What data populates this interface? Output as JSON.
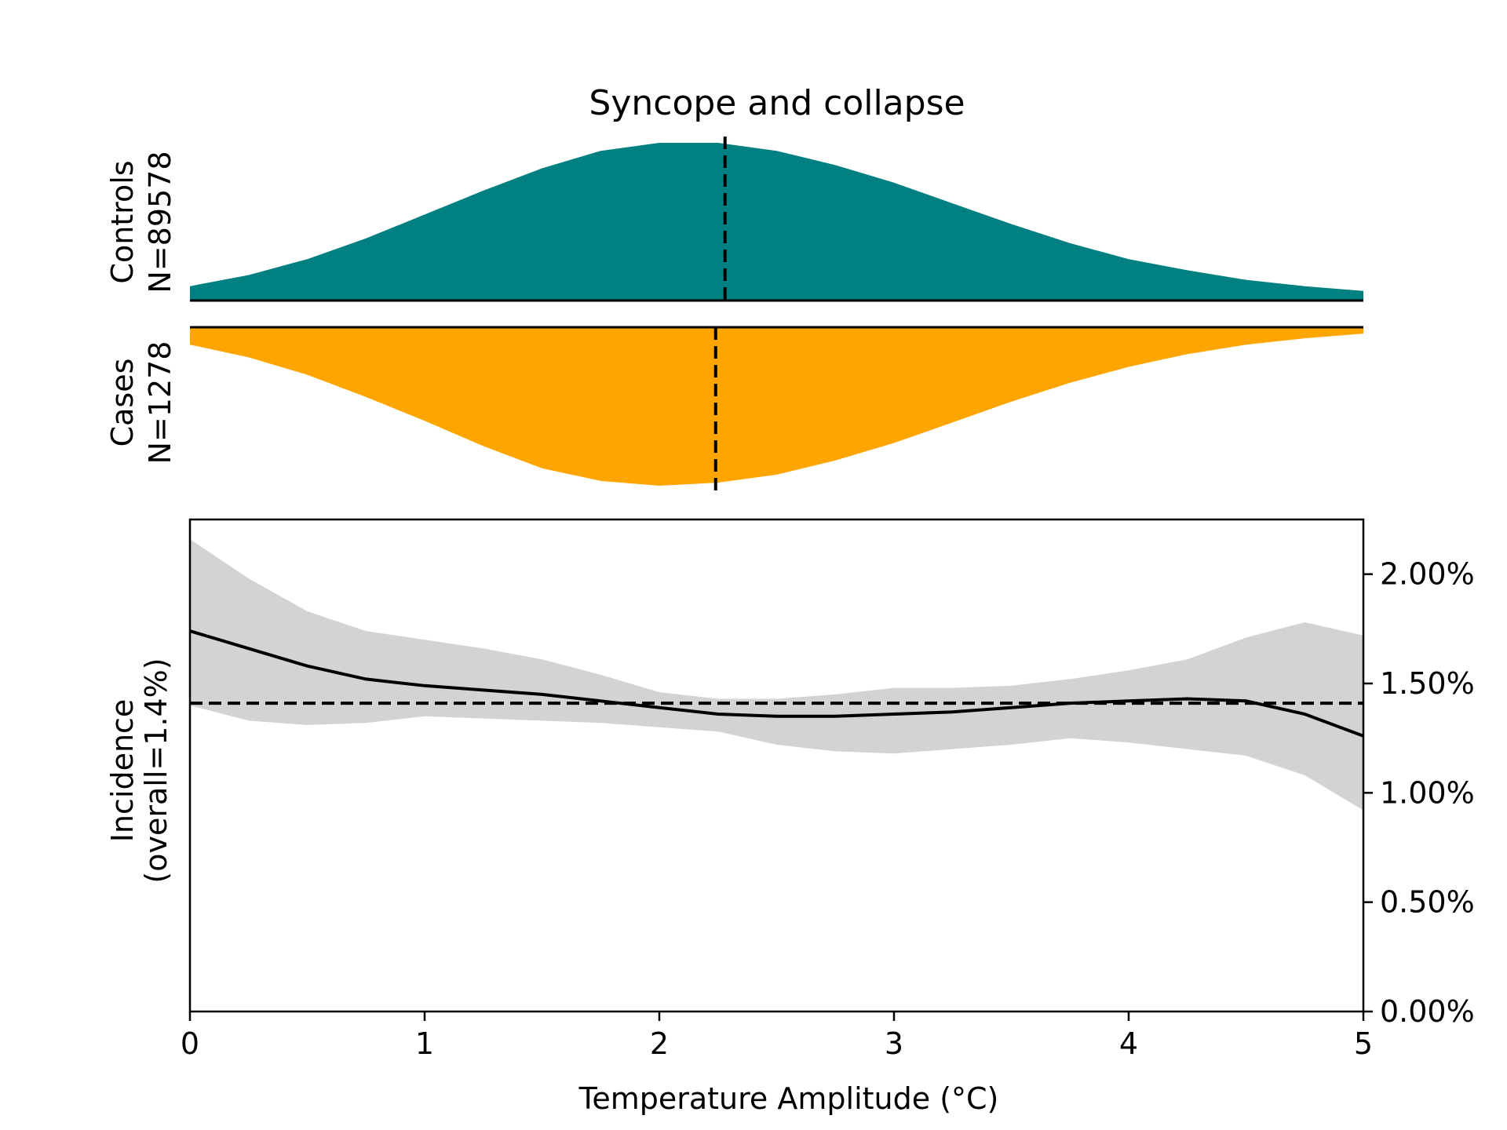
{
  "chart_data": [
    {
      "type": "area",
      "title": "Syncope and collapse",
      "series": [
        {
          "name": "Controls",
          "ylabel": "Controls",
          "n_label": "N=89578",
          "color": "#008080",
          "orientation": "up",
          "x": [
            0,
            0.25,
            0.5,
            0.75,
            1.0,
            1.25,
            1.5,
            1.75,
            2.0,
            2.25,
            2.5,
            2.75,
            3.0,
            3.25,
            3.5,
            3.75,
            4.0,
            4.25,
            4.5,
            4.75,
            5.0
          ],
          "density": [
            0.09,
            0.16,
            0.26,
            0.39,
            0.54,
            0.69,
            0.83,
            0.94,
            0.99,
            0.99,
            0.94,
            0.85,
            0.74,
            0.61,
            0.48,
            0.36,
            0.26,
            0.19,
            0.13,
            0.09,
            0.06
          ],
          "median": 2.28
        },
        {
          "name": "Cases",
          "ylabel": "Cases",
          "n_label": "N=1278",
          "color": "#FFA500",
          "orientation": "down",
          "x": [
            0,
            0.25,
            0.5,
            0.75,
            1.0,
            1.25,
            1.5,
            1.75,
            2.0,
            2.25,
            2.5,
            2.75,
            3.0,
            3.25,
            3.5,
            3.75,
            4.0,
            4.25,
            4.5,
            4.75,
            5.0
          ],
          "density": [
            0.11,
            0.19,
            0.3,
            0.44,
            0.59,
            0.75,
            0.89,
            0.97,
            1.0,
            0.98,
            0.93,
            0.84,
            0.73,
            0.6,
            0.47,
            0.35,
            0.25,
            0.17,
            0.11,
            0.07,
            0.04
          ],
          "median": 2.24
        }
      ]
    },
    {
      "type": "line",
      "xlabel": "Temperature Amplitude (°C)",
      "ylabel_line1": "Incidence",
      "ylabel_line2": "(overall=1.4%)",
      "xlim": [
        0,
        5
      ],
      "ylim": [
        0,
        2.25
      ],
      "xticks": [
        "0",
        "1",
        "2",
        "3",
        "4",
        "5"
      ],
      "yticks": [
        {
          "value": 0,
          "label": "0.00%"
        },
        {
          "value": 0.5,
          "label": "0.50%"
        },
        {
          "value": 1.0,
          "label": "1.00%"
        },
        {
          "value": 1.5,
          "label": "1.50%"
        },
        {
          "value": 2.0,
          "label": "2.00%"
        }
      ],
      "overall": 1.41,
      "series": [
        {
          "x": [
            0,
            0.25,
            0.5,
            0.75,
            1.0,
            1.25,
            1.5,
            1.75,
            2.0,
            2.25,
            2.5,
            2.75,
            3.0,
            3.25,
            3.5,
            3.75,
            4.0,
            4.25,
            4.5,
            4.75,
            5.0
          ],
          "y": [
            1.74,
            1.66,
            1.58,
            1.52,
            1.49,
            1.47,
            1.45,
            1.42,
            1.39,
            1.36,
            1.35,
            1.35,
            1.36,
            1.37,
            1.39,
            1.41,
            1.42,
            1.43,
            1.42,
            1.36,
            1.26
          ],
          "lower": [
            1.4,
            1.33,
            1.31,
            1.32,
            1.35,
            1.34,
            1.33,
            1.32,
            1.3,
            1.28,
            1.22,
            1.19,
            1.18,
            1.2,
            1.22,
            1.25,
            1.23,
            1.2,
            1.17,
            1.08,
            0.92
          ],
          "upper": [
            2.16,
            1.98,
            1.83,
            1.74,
            1.7,
            1.66,
            1.61,
            1.54,
            1.46,
            1.43,
            1.43,
            1.45,
            1.48,
            1.48,
            1.49,
            1.52,
            1.56,
            1.61,
            1.71,
            1.78,
            1.72
          ]
        }
      ],
      "ci_color": "#D3D3D3",
      "line_color": "#000000"
    }
  ]
}
